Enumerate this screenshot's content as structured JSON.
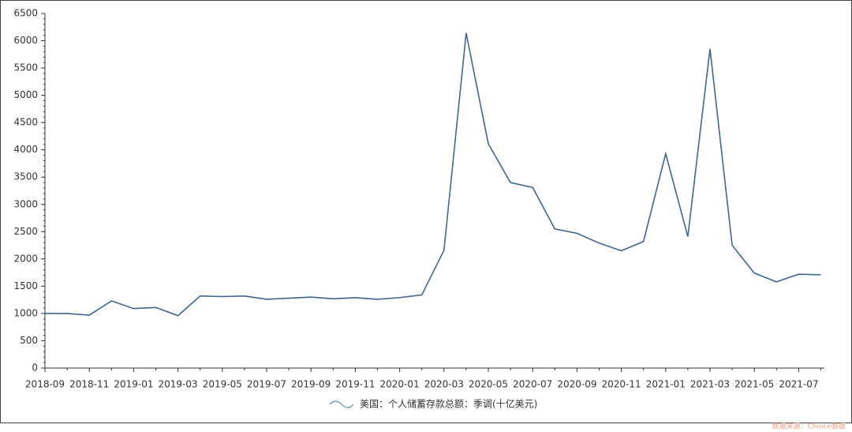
{
  "chart_data": {
    "type": "line",
    "categories": [
      "2018-09",
      null,
      "2018-11",
      null,
      "2019-01",
      null,
      "2019-03",
      null,
      "2019-05",
      null,
      "2019-07",
      null,
      "2019-09",
      null,
      "2019-11",
      null,
      "2020-01",
      null,
      "2020-03",
      null,
      "2020-05",
      null,
      "2020-07",
      null,
      "2020-09",
      null,
      "2020-11",
      null,
      "2021-01",
      null,
      "2021-03",
      null,
      "2021-05",
      null,
      "2021-07",
      null
    ],
    "series": [
      {
        "name": "美国：个人储蓄存款总额：季调(十亿美元)",
        "color": "#3e6690",
        "values": [
          1000,
          1000,
          970,
          1230,
          1090,
          1110,
          960,
          1320,
          1310,
          1320,
          1260,
          1280,
          1300,
          1270,
          1290,
          1260,
          1290,
          1340,
          2160,
          6140,
          4110,
          3400,
          3310,
          2550,
          2470,
          2290,
          2150,
          2320,
          3930,
          2410,
          5850,
          2250,
          1740,
          1580,
          1720,
          1710
        ]
      }
    ],
    "ylim": [
      0,
      6500
    ],
    "yticks": [
      0,
      500,
      1000,
      1500,
      2000,
      2500,
      3000,
      3500,
      4000,
      4500,
      5000,
      5500,
      6000,
      6500
    ],
    "legend": "bottom",
    "source": "数据来源：Choice数据"
  }
}
